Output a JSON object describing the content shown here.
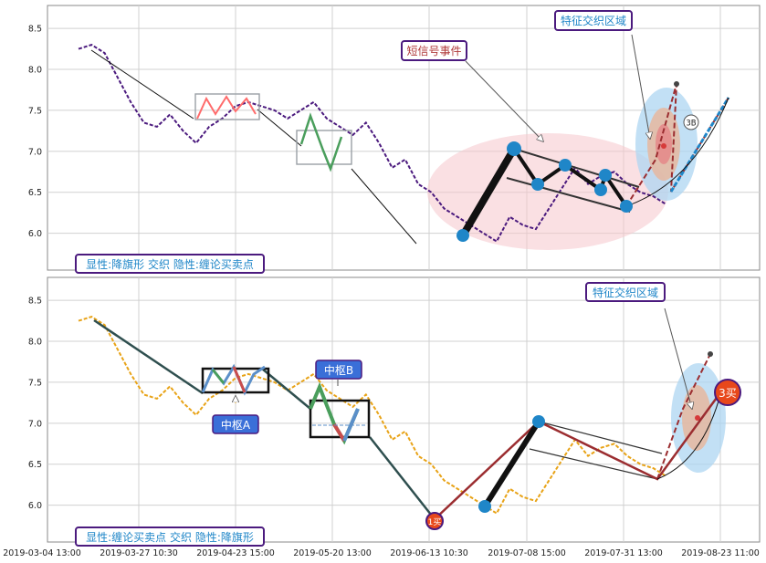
{
  "chart_data": [
    {
      "type": "line",
      "ylim": [
        5.55,
        8.78
      ],
      "yticks": [
        "8.5",
        "8.0",
        "7.5",
        "7.0",
        "6.5",
        "6.0"
      ],
      "ytick_values": [
        8.5,
        8.0,
        7.5,
        7.0,
        6.5,
        6.0
      ],
      "price_color": "#4b1a7e",
      "series": [
        {
          "values": [
            8.25,
            8.3,
            8.2,
            7.9,
            7.6,
            7.35,
            7.3,
            7.45,
            7.25,
            7.1,
            7.3,
            7.4,
            7.55,
            7.6,
            7.55,
            7.5,
            7.4,
            7.5,
            7.6,
            7.4,
            7.3,
            7.2,
            7.35,
            7.1,
            6.8,
            6.9,
            6.6,
            6.5,
            6.3,
            6.2,
            6.1,
            6.0,
            5.9,
            6.2,
            6.1,
            6.05,
            6.3,
            6.55,
            6.8,
            6.6,
            6.7,
            6.75,
            6.6,
            6.5,
            6.45,
            6.35
          ]
        }
      ],
      "annotations": {
        "short_signal": "短信号事件",
        "feature_zone": "特征交织区域",
        "point_label": "3B",
        "legend": "显性:降旗形 交织 隐性:缠论买卖点"
      }
    },
    {
      "type": "line",
      "ylim": [
        5.55,
        8.78
      ],
      "yticks": [
        "8.5",
        "8.0",
        "7.5",
        "7.0",
        "6.5",
        "6.0"
      ],
      "ytick_values": [
        8.5,
        8.0,
        7.5,
        7.0,
        6.5,
        6.0
      ],
      "price_color": "#e8a317",
      "series": [
        {
          "values": [
            8.25,
            8.3,
            8.2,
            7.9,
            7.6,
            7.35,
            7.3,
            7.45,
            7.25,
            7.1,
            7.3,
            7.4,
            7.55,
            7.6,
            7.55,
            7.5,
            7.4,
            7.5,
            7.6,
            7.4,
            7.3,
            7.2,
            7.35,
            7.1,
            6.8,
            6.9,
            6.6,
            6.5,
            6.3,
            6.2,
            6.1,
            6.0,
            5.9,
            6.2,
            6.1,
            6.05,
            6.3,
            6.55,
            6.8,
            6.6,
            6.7,
            6.75,
            6.6,
            6.5,
            6.45,
            6.35
          ]
        }
      ],
      "annotations": {
        "pivot_a": "中枢A",
        "pivot_b": "中枢B",
        "feature_zone": "特征交织区域",
        "buy1": "1买",
        "buy3": "3买",
        "legend": "显性:缠论买卖点 交织 隐性:降旗形"
      }
    }
  ],
  "xticks": [
    "2019-03-04 13:00",
    "2019-03-27 10:30",
    "2019-04-23 15:00",
    "2019-05-20 13:00",
    "2019-06-13 10:30",
    "2019-07-08 15:00",
    "2019-07-31 13:00",
    "2019-08-23 11:00"
  ],
  "colors": {
    "grid": "#d0d0d0",
    "blue_node": "#1f86c8",
    "pink_ellipse": "#f5c6cc",
    "light_blue_ellipse": "#aed6f1",
    "label_border": "#4b1a7e",
    "blue_label_bg": "#3a6fd8",
    "red_buy": "#e8481b",
    "dark_red": "#9b2d30"
  }
}
